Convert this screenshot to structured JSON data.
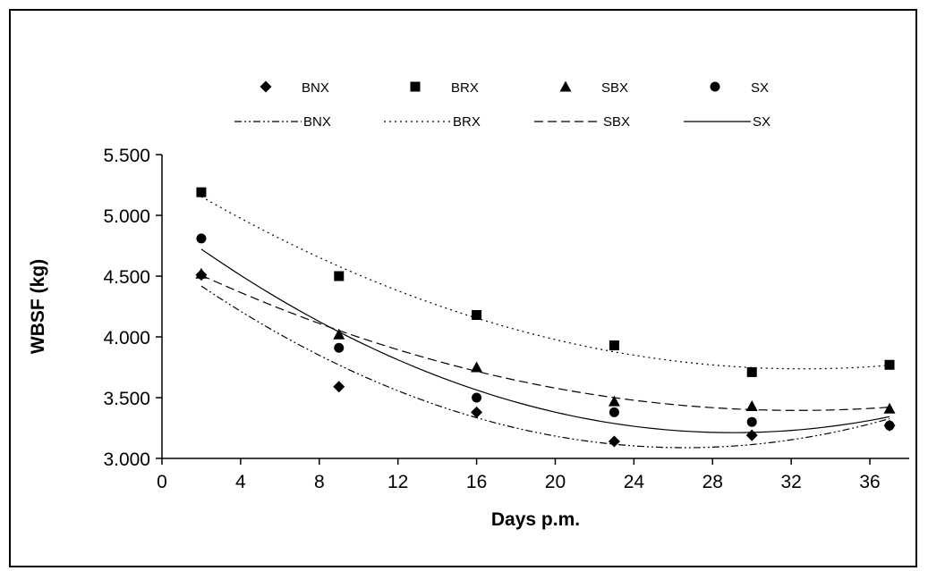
{
  "chart_data": {
    "type": "scatter",
    "xlabel": "Days p.m.",
    "ylabel": "WBSF (kg)",
    "xlim": [
      0,
      38
    ],
    "ylim": [
      3.0,
      5.5
    ],
    "x_ticks": [
      "0",
      "4",
      "8",
      "12",
      "16",
      "20",
      "24",
      "28",
      "32",
      "36"
    ],
    "y_ticks": [
      "3.000",
      "3.500",
      "4.000",
      "4.500",
      "5.000",
      "5.500"
    ],
    "grid": false,
    "legend_position": "top",
    "x": [
      2,
      9,
      16,
      23,
      30,
      37
    ],
    "series": [
      {
        "name": "BNX",
        "marker": "diamond",
        "line_style": "dash-dot-dot",
        "values": [
          4.51,
          3.59,
          3.38,
          3.14,
          3.19,
          3.27
        ]
      },
      {
        "name": "BRX",
        "marker": "square",
        "line_style": "dotted",
        "values": [
          5.19,
          4.5,
          4.18,
          3.93,
          3.71,
          3.77
        ]
      },
      {
        "name": "SBX",
        "marker": "triangle",
        "line_style": "dashed",
        "values": [
          4.52,
          4.02,
          3.75,
          3.47,
          3.43,
          3.41
        ]
      },
      {
        "name": "SX",
        "marker": "circle",
        "line_style": "solid",
        "values": [
          4.81,
          3.91,
          3.5,
          3.38,
          3.3,
          3.27
        ]
      }
    ],
    "trendline": "polynomial order 2"
  }
}
